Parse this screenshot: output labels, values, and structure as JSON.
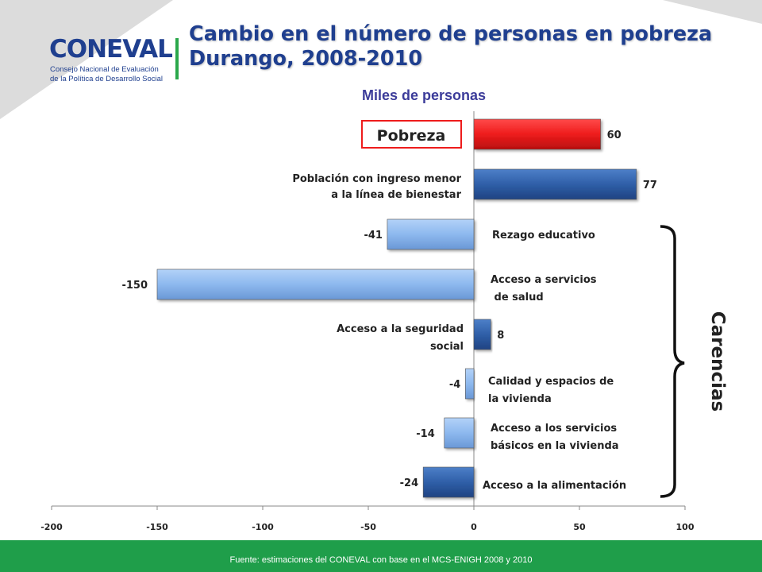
{
  "header": {
    "logo_word": "CONEVAL",
    "logo_line1": "Consejo Nacional de Evaluación",
    "logo_line2": "de la Política de Desarrollo Social",
    "title_line1": "Cambio en el número de personas en pobreza",
    "title_line2": "Durango, 2008-2010"
  },
  "chart_data": {
    "type": "bar",
    "orientation": "horizontal",
    "subtitle": "Miles de personas",
    "categories": [
      "Pobreza",
      "Población con ingreso menor a la línea de bienestar",
      "Rezago educativo",
      "Acceso a servicios de salud",
      "Acceso a  la seguridad social",
      "Calidad y espacios de la vivienda",
      "Acceso a los servicios básicos en la vivienda",
      "Acceso a la alimentación"
    ],
    "values": [
      60,
      77,
      -41,
      -150,
      8,
      -4,
      -14,
      -24
    ],
    "xlim": [
      -200,
      100
    ],
    "xticks": [
      -200,
      -150,
      -100,
      -50,
      0,
      50,
      100
    ],
    "group_label": "Carencias",
    "colors": {
      "pobreza": "#ee1c1c",
      "dark": "#2f5fa8",
      "light": "#8db8ee"
    }
  },
  "footer": {
    "source": "Fuente: estimaciones del CONEVAL con base en el MCS-ENIGH 2008 y 2010"
  }
}
